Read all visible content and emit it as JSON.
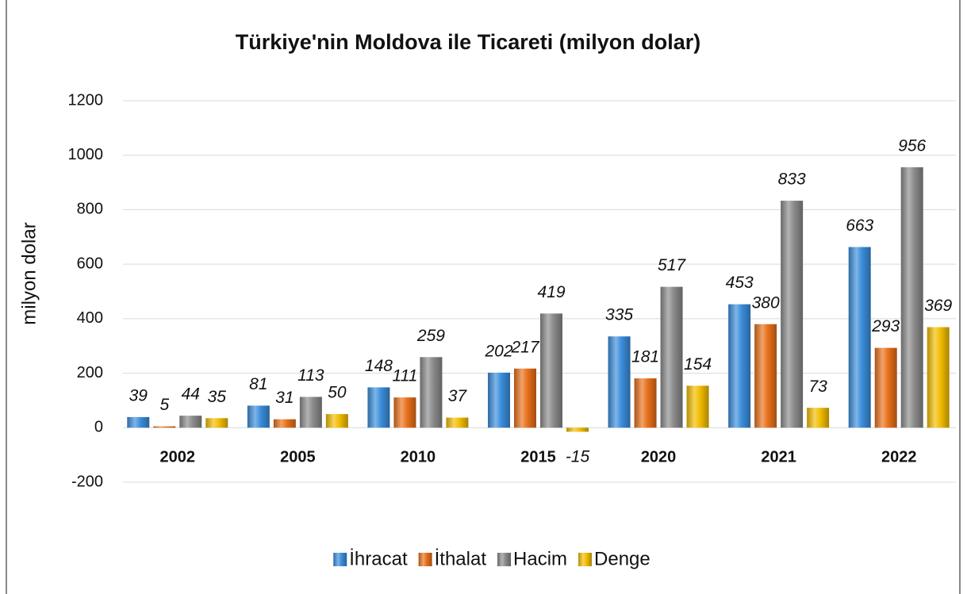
{
  "chart_data": {
    "type": "bar",
    "title": "Türkiye'nin Moldova ile Ticareti (milyon dolar)",
    "y_label": "milyon dolar",
    "categories": [
      "2002",
      "2005",
      "2010",
      "2015",
      "2020",
      "2021",
      "2022"
    ],
    "series": [
      {
        "name": "İhracat",
        "color": "#3a8ddb",
        "values": [
          39,
          81,
          148,
          202,
          335,
          453,
          663
        ]
      },
      {
        "name": "İthalat",
        "color": "#e8701a",
        "values": [
          5,
          31,
          111,
          217,
          181,
          380,
          293
        ]
      },
      {
        "name": "Hacim",
        "color": "#8a8a8a",
        "values": [
          44,
          113,
          259,
          419,
          517,
          833,
          956
        ]
      },
      {
        "name": "Denge",
        "color": "#f2bd00",
        "values": [
          35,
          50,
          37,
          -15,
          154,
          73,
          369
        ]
      }
    ],
    "ylim": [
      -200,
      1200
    ],
    "yticks": [
      -200,
      0,
      200,
      400,
      600,
      800,
      1000,
      1200
    ],
    "grid": true,
    "legend": "bottom"
  }
}
